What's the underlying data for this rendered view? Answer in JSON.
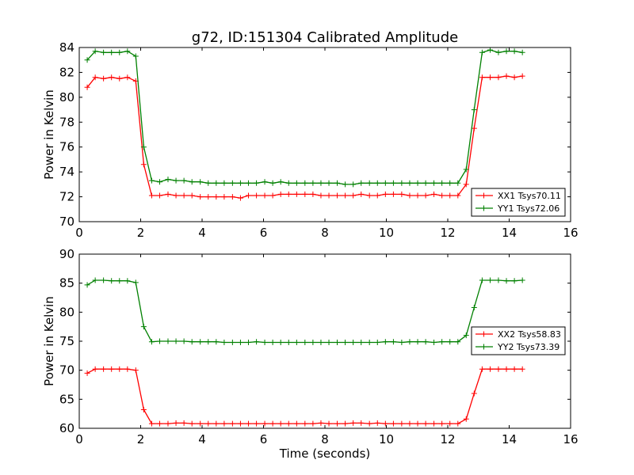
{
  "figure": {
    "title": "g72, ID:151304 Calibrated Amplitude"
  },
  "chart_data": [
    {
      "type": "line",
      "title": "g72, ID:151304 Calibrated Amplitude",
      "xlabel": "",
      "ylabel": "Power in Kelvin",
      "xlim": [
        0,
        16
      ],
      "ylim": [
        70,
        84
      ],
      "xticks": [
        0,
        2,
        4,
        6,
        8,
        10,
        12,
        14,
        16
      ],
      "yticks": [
        70,
        72,
        74,
        76,
        78,
        80,
        82,
        84
      ],
      "grid": false,
      "legend_position": "lower-right",
      "x": [
        0.26,
        0.52,
        0.79,
        1.05,
        1.31,
        1.57,
        1.84,
        2.1,
        2.36,
        2.62,
        2.89,
        3.15,
        3.41,
        3.67,
        3.94,
        4.2,
        4.46,
        4.72,
        4.99,
        5.25,
        5.51,
        5.77,
        6.04,
        6.3,
        6.56,
        6.82,
        7.08,
        7.35,
        7.61,
        7.87,
        8.13,
        8.4,
        8.66,
        8.92,
        9.18,
        9.45,
        9.71,
        9.97,
        10.23,
        10.5,
        10.76,
        11.02,
        11.28,
        11.55,
        11.81,
        12.07,
        12.33,
        12.6,
        12.86,
        13.12,
        13.38,
        13.65,
        13.91,
        14.17,
        14.43
      ],
      "series": [
        {
          "name": "XX1 Tsys70.11",
          "color": "#ff0000",
          "values": [
            80.8,
            81.6,
            81.5,
            81.6,
            81.5,
            81.6,
            81.3,
            74.6,
            72.1,
            72.1,
            72.2,
            72.1,
            72.1,
            72.1,
            72.0,
            72.0,
            72.0,
            72.0,
            72.0,
            71.9,
            72.1,
            72.1,
            72.1,
            72.1,
            72.2,
            72.2,
            72.2,
            72.2,
            72.2,
            72.1,
            72.1,
            72.1,
            72.1,
            72.1,
            72.2,
            72.1,
            72.1,
            72.2,
            72.2,
            72.2,
            72.1,
            72.1,
            72.1,
            72.2,
            72.1,
            72.1,
            72.1,
            73.0,
            77.5,
            81.6,
            81.6,
            81.6,
            81.7,
            81.6,
            81.7
          ]
        },
        {
          "name": "YY1 Tsys72.06",
          "color": "#008000",
          "values": [
            83.0,
            83.7,
            83.6,
            83.6,
            83.6,
            83.7,
            83.3,
            76.0,
            73.3,
            73.2,
            73.4,
            73.3,
            73.3,
            73.2,
            73.2,
            73.1,
            73.1,
            73.1,
            73.1,
            73.1,
            73.1,
            73.1,
            73.2,
            73.1,
            73.2,
            73.1,
            73.1,
            73.1,
            73.1,
            73.1,
            73.1,
            73.1,
            73.0,
            73.0,
            73.1,
            73.1,
            73.1,
            73.1,
            73.1,
            73.1,
            73.1,
            73.1,
            73.1,
            73.1,
            73.1,
            73.1,
            73.1,
            74.2,
            79.0,
            83.6,
            83.8,
            83.6,
            83.7,
            83.7,
            83.6
          ]
        }
      ]
    },
    {
      "type": "line",
      "title": "",
      "xlabel": "Time (seconds)",
      "ylabel": "Power in Kelvin",
      "xlim": [
        0,
        16
      ],
      "ylim": [
        60,
        90
      ],
      "xticks": [
        0,
        2,
        4,
        6,
        8,
        10,
        12,
        14,
        16
      ],
      "yticks": [
        60,
        65,
        70,
        75,
        80,
        85,
        90
      ],
      "grid": false,
      "legend_position": "center-right",
      "x": [
        0.26,
        0.52,
        0.79,
        1.05,
        1.31,
        1.57,
        1.84,
        2.1,
        2.36,
        2.62,
        2.89,
        3.15,
        3.41,
        3.67,
        3.94,
        4.2,
        4.46,
        4.72,
        4.99,
        5.25,
        5.51,
        5.77,
        6.04,
        6.3,
        6.56,
        6.82,
        7.08,
        7.35,
        7.61,
        7.87,
        8.13,
        8.4,
        8.66,
        8.92,
        9.18,
        9.45,
        9.71,
        9.97,
        10.23,
        10.5,
        10.76,
        11.02,
        11.28,
        11.55,
        11.81,
        12.07,
        12.33,
        12.6,
        12.86,
        13.12,
        13.38,
        13.65,
        13.91,
        14.17,
        14.43
      ],
      "series": [
        {
          "name": "XX2 Tsys58.83",
          "color": "#ff0000",
          "values": [
            69.5,
            70.2,
            70.2,
            70.2,
            70.2,
            70.2,
            70.0,
            63.2,
            60.8,
            60.8,
            60.8,
            60.9,
            60.9,
            60.8,
            60.8,
            60.8,
            60.8,
            60.8,
            60.8,
            60.8,
            60.8,
            60.8,
            60.8,
            60.8,
            60.8,
            60.8,
            60.8,
            60.8,
            60.8,
            60.9,
            60.8,
            60.8,
            60.8,
            60.9,
            60.9,
            60.8,
            60.9,
            60.8,
            60.8,
            60.8,
            60.8,
            60.8,
            60.8,
            60.8,
            60.8,
            60.8,
            60.8,
            61.6,
            66.0,
            70.2,
            70.2,
            70.2,
            70.2,
            70.2,
            70.2
          ]
        },
        {
          "name": "YY2 Tsys73.39",
          "color": "#008000",
          "values": [
            84.7,
            85.5,
            85.5,
            85.4,
            85.4,
            85.4,
            85.1,
            77.5,
            74.9,
            75.0,
            75.0,
            75.0,
            75.0,
            74.9,
            74.9,
            74.9,
            74.9,
            74.8,
            74.8,
            74.8,
            74.8,
            74.9,
            74.8,
            74.8,
            74.8,
            74.8,
            74.8,
            74.8,
            74.8,
            74.8,
            74.8,
            74.8,
            74.8,
            74.8,
            74.8,
            74.8,
            74.8,
            74.9,
            74.9,
            74.8,
            74.9,
            74.9,
            74.9,
            74.8,
            74.9,
            74.9,
            74.9,
            76.0,
            80.8,
            85.5,
            85.5,
            85.5,
            85.4,
            85.4,
            85.5
          ]
        }
      ]
    }
  ]
}
